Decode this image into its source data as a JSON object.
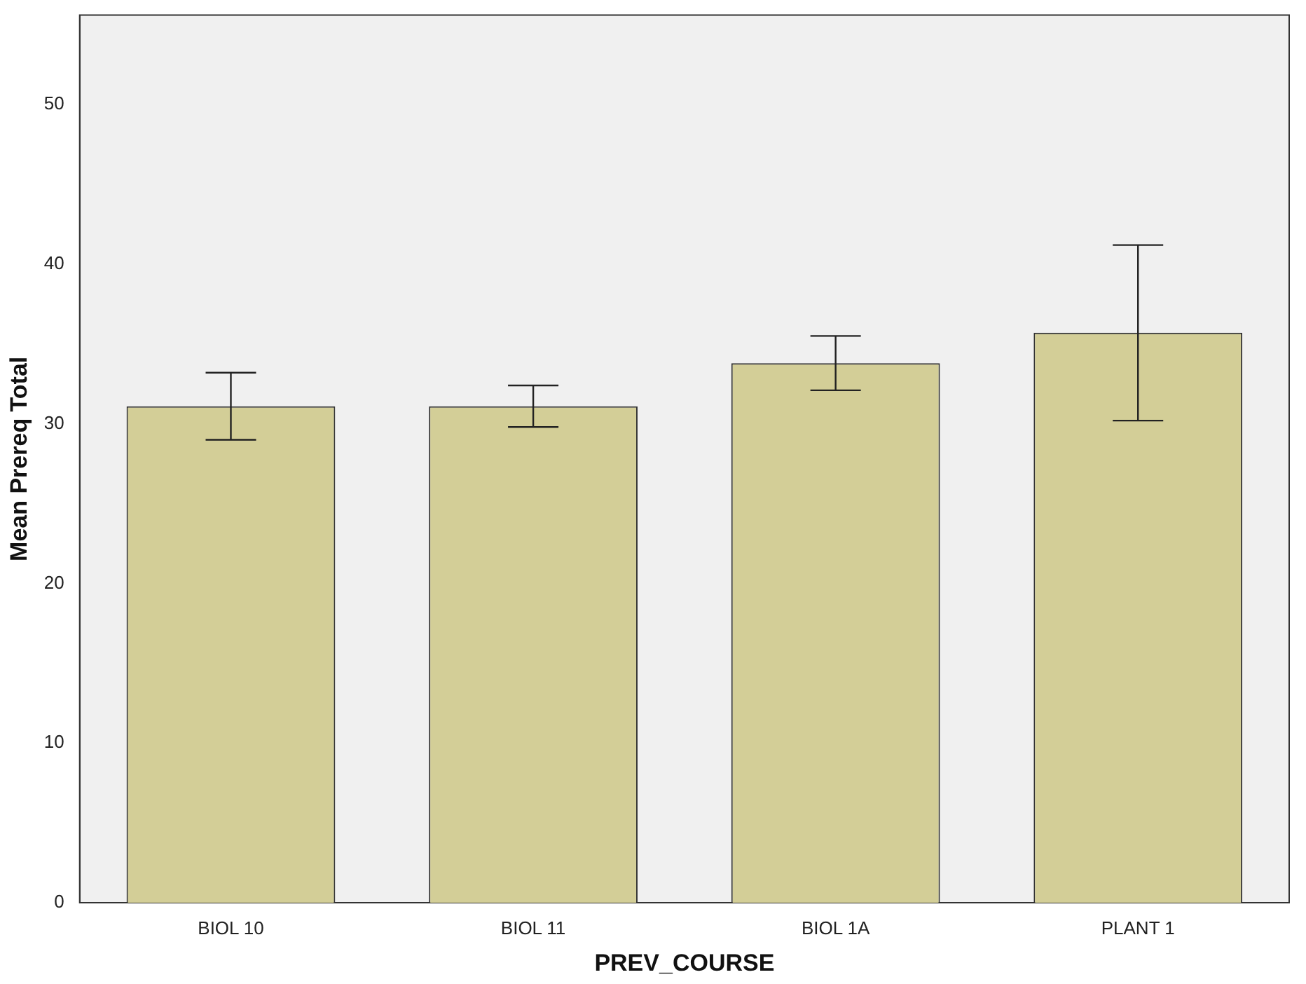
{
  "chart_data": {
    "type": "bar",
    "xlabel": "PREV_COURSE",
    "ylabel": "Mean Prereq Total",
    "categories": [
      "BIOL 10",
      "BIOL 11",
      "BIOL 1A",
      "PLANT 1"
    ],
    "values": [
      31.1,
      31.1,
      33.8,
      35.7
    ],
    "errors": [
      2.1,
      1.3,
      1.7,
      5.5
    ],
    "color": "#d3ce97",
    "ylim": [
      0,
      55.6
    ],
    "yticks": [
      0,
      10,
      20,
      30,
      40,
      50
    ],
    "grid": false,
    "legend": false
  }
}
